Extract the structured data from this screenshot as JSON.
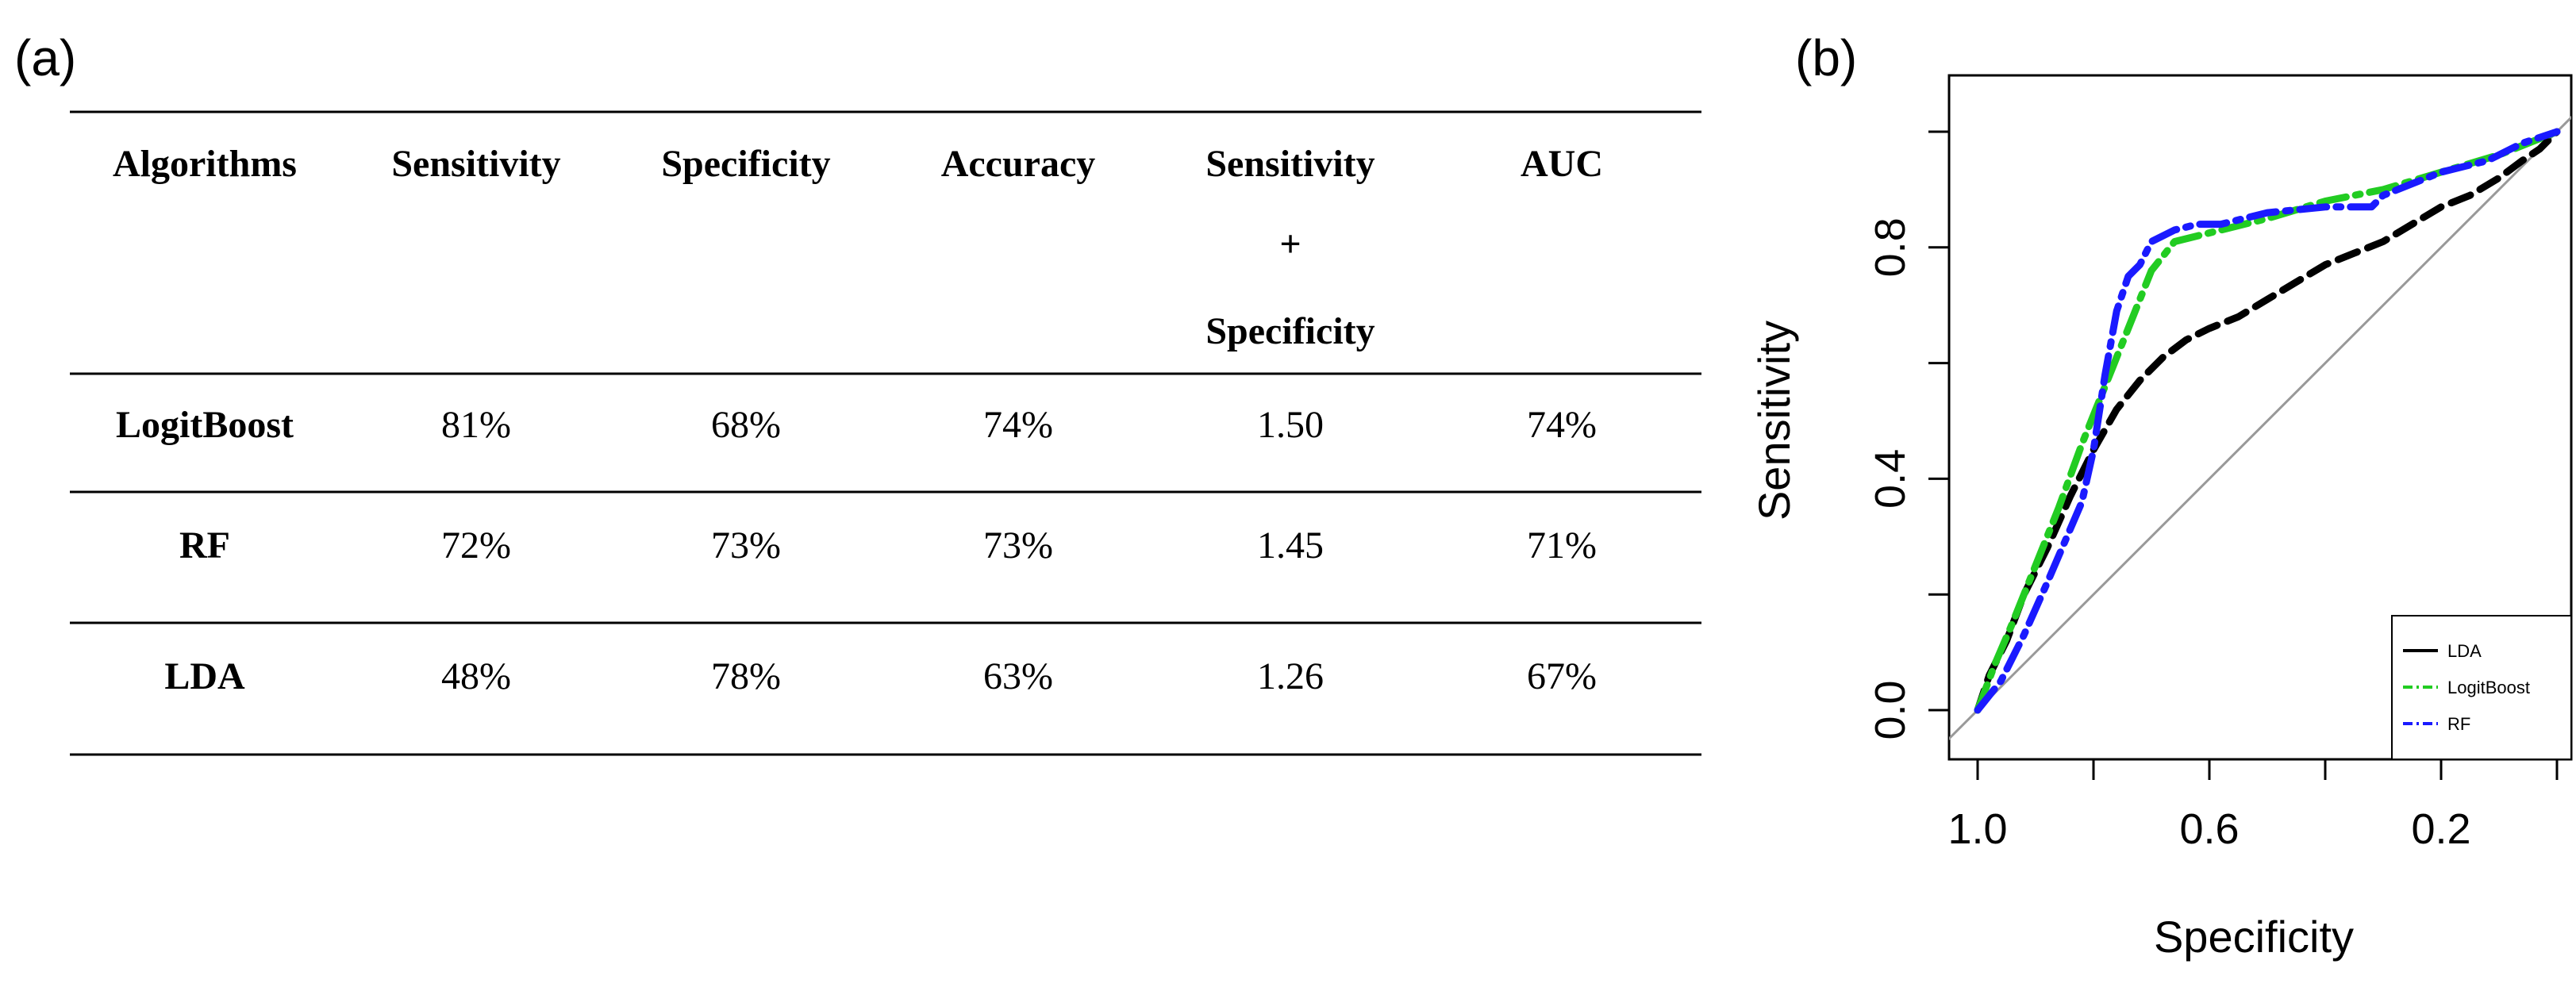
{
  "panel_a": {
    "label": "(a)",
    "columns": [
      "Algorithms",
      "Sensitivity",
      "Specificity",
      "Accuracy",
      "Sensitivity",
      "+",
      "Specificity",
      "AUC"
    ],
    "rows": [
      [
        "LogitBoost",
        "81%",
        "68%",
        "74%",
        "1.50",
        "74%"
      ],
      [
        "RF",
        "72%",
        "73%",
        "73%",
        "1.45",
        "71%"
      ],
      [
        "LDA",
        "48%",
        "78%",
        "63%",
        "1.26",
        "67%"
      ]
    ]
  },
  "panel_b": {
    "label": "(b)"
  },
  "chart_data": [
    {
      "type": "table",
      "columns": [
        "Algorithms",
        "Sensitivity",
        "Specificity",
        "Accuracy",
        "Sensitivity + Specificity",
        "AUC"
      ],
      "rows": [
        [
          "LogitBoost",
          "81%",
          "68%",
          "74%",
          "1.50",
          "74%"
        ],
        [
          "RF",
          "72%",
          "73%",
          "73%",
          "1.45",
          "71%"
        ],
        [
          "LDA",
          "48%",
          "78%",
          "63%",
          "1.26",
          "67%"
        ]
      ]
    },
    {
      "type": "line",
      "xlabel": "Specificity",
      "ylabel": "Sensitivity",
      "x_reversed": true,
      "xlim": [
        1.0,
        0.0
      ],
      "ylim": [
        0.0,
        1.0
      ],
      "x_tick_labels": [
        "1.0",
        "0.6",
        "0.2"
      ],
      "y_tick_labels": [
        "0.0",
        "0.4",
        "0.8"
      ],
      "legend_position": "bottom-right",
      "series": [
        {
          "name": "LDA",
          "color": "#000000",
          "style": "dashed",
          "x": [
            1.0,
            0.98,
            0.95,
            0.92,
            0.88,
            0.84,
            0.8,
            0.76,
            0.72,
            0.68,
            0.64,
            0.6,
            0.55,
            0.5,
            0.45,
            0.4,
            0.35,
            0.3,
            0.25,
            0.2,
            0.15,
            0.1,
            0.06,
            0.03,
            0.0
          ],
          "y": [
            0.0,
            0.06,
            0.12,
            0.2,
            0.28,
            0.37,
            0.45,
            0.52,
            0.57,
            0.61,
            0.64,
            0.66,
            0.68,
            0.71,
            0.74,
            0.77,
            0.79,
            0.81,
            0.84,
            0.87,
            0.89,
            0.92,
            0.95,
            0.97,
            1.0
          ]
        },
        {
          "name": "LogitBoost",
          "color": "#22cc22",
          "style": "dotdash",
          "x": [
            1.0,
            0.97,
            0.94,
            0.9,
            0.86,
            0.82,
            0.78,
            0.74,
            0.7,
            0.66,
            0.62,
            0.58,
            0.5,
            0.4,
            0.3,
            0.2,
            0.1,
            0.05,
            0.0
          ],
          "y": [
            0.0,
            0.08,
            0.15,
            0.25,
            0.35,
            0.46,
            0.56,
            0.66,
            0.76,
            0.81,
            0.82,
            0.83,
            0.85,
            0.88,
            0.9,
            0.93,
            0.96,
            0.98,
            1.0
          ]
        },
        {
          "name": "RF",
          "color": "#1a1aff",
          "style": "dotdash",
          "x": [
            1.0,
            0.96,
            0.92,
            0.88,
            0.85,
            0.82,
            0.8,
            0.78,
            0.76,
            0.74,
            0.72,
            0.7,
            0.66,
            0.62,
            0.58,
            0.5,
            0.4,
            0.32,
            0.3,
            0.25,
            0.2,
            0.12,
            0.06,
            0.0
          ],
          "y": [
            0.0,
            0.05,
            0.13,
            0.22,
            0.29,
            0.36,
            0.45,
            0.58,
            0.69,
            0.75,
            0.77,
            0.81,
            0.83,
            0.84,
            0.84,
            0.86,
            0.87,
            0.87,
            0.89,
            0.91,
            0.93,
            0.95,
            0.98,
            1.0
          ]
        },
        {
          "name": "",
          "color": "#999999",
          "style": "solid",
          "x": [
            1.0,
            0.0
          ],
          "y": [
            0.0,
            1.0
          ]
        }
      ]
    }
  ]
}
